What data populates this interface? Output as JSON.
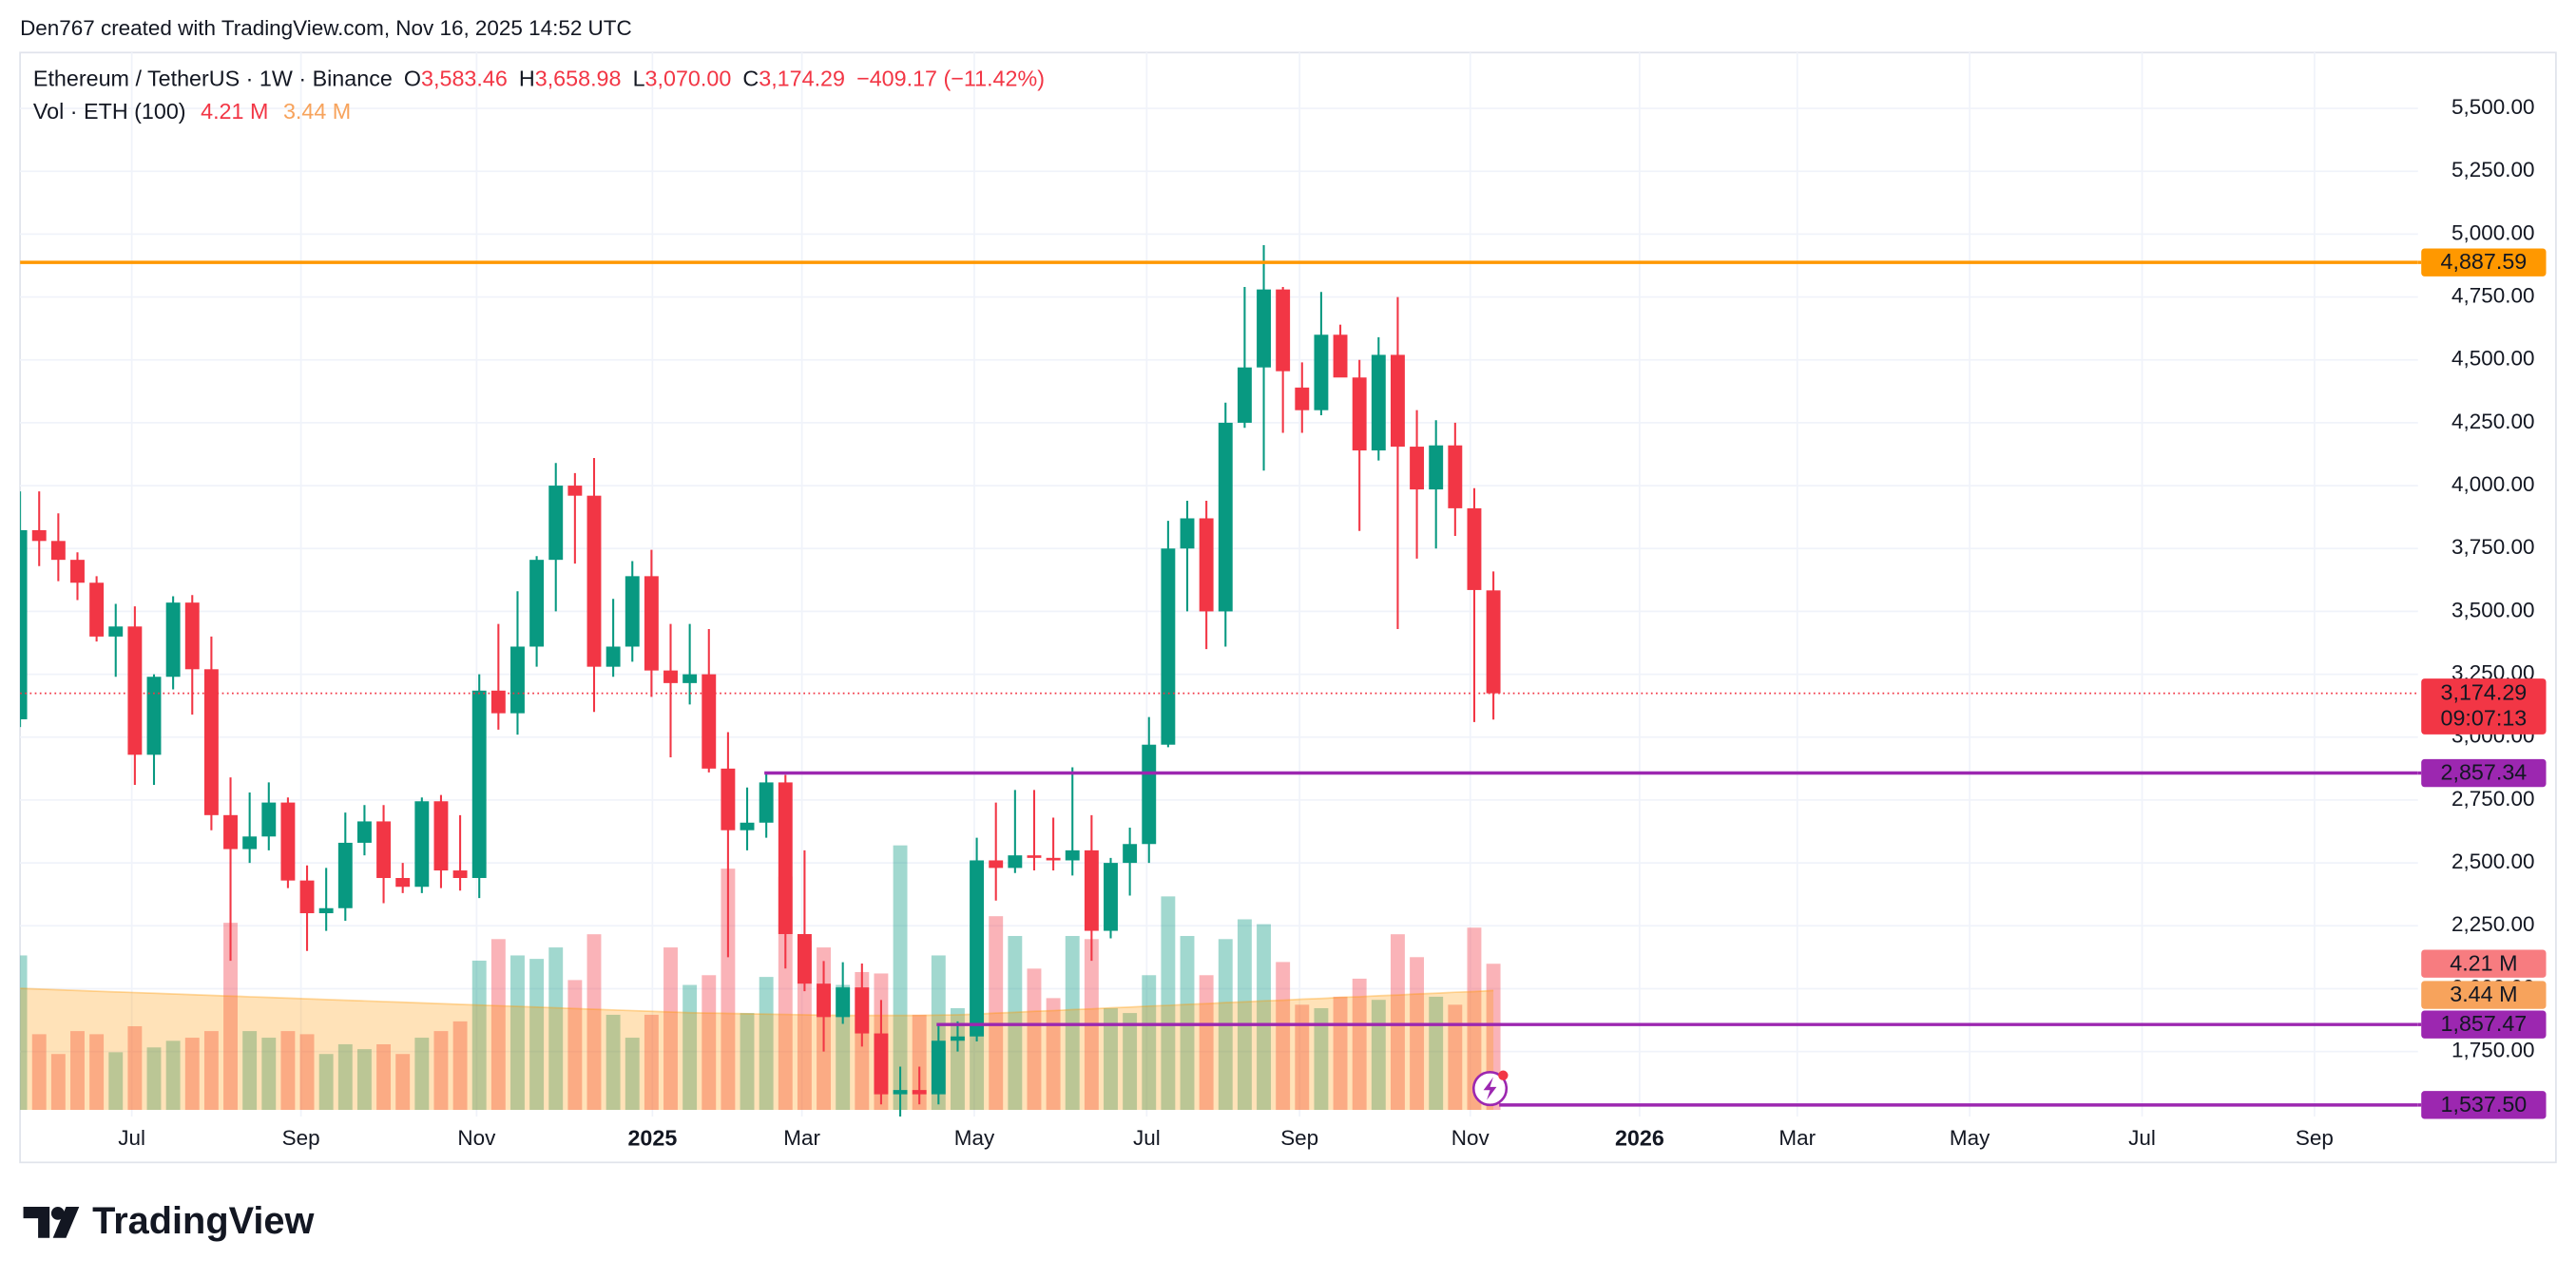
{
  "header": {
    "credit": "Den767 created with TradingView.com, Nov 16, 2025 14:52 UTC"
  },
  "footer": {
    "brand": "TradingView"
  },
  "chart_data": {
    "type": "candlestick",
    "legend": {
      "symbol": "Ethereum / TetherUS · 1W · Binance",
      "o": "O",
      "open": "3,583.46",
      "h": "H",
      "high": "3,658.98",
      "l": "L",
      "low": "3,070.00",
      "c": "C",
      "close": "3,174.29",
      "change": "−409.17 (−11.42%)",
      "volume_title": "Vol · ETH (100)",
      "volume": "4.21 M",
      "volume_ma": "3.44 M"
    },
    "up_color": "#089981",
    "down_color": "#f23645",
    "volume_ma_color": "#ff9800",
    "open": [
      3071,
      3823,
      3780,
      3705,
      3614,
      3400,
      3440,
      2930,
      3240,
      3535,
      3270,
      2690,
      2555,
      2605,
      2740,
      2430,
      2300,
      2320,
      2580,
      2665,
      2440,
      2405,
      2745,
      2470,
      2440,
      3185,
      3095,
      3360,
      3705,
      4000,
      3960,
      3280,
      3360,
      3640,
      3265,
      3215,
      3250,
      2875,
      2630,
      2660,
      2820,
      2217,
      2020,
      1887,
      2005,
      1822,
      1580,
      1597,
      1580,
      1793,
      1810,
      2510,
      2480,
      2530,
      2520,
      2510,
      2550,
      2230,
      2500,
      2575,
      2970,
      3750,
      3870,
      3500,
      4250,
      4470,
      4780,
      4390,
      4300,
      4600,
      4430,
      4140,
      4520,
      4155,
      3985,
      4160,
      3910,
      3583.46
    ],
    "high": [
      3977,
      3977,
      3890,
      3735,
      3640,
      3530,
      3520,
      3250,
      3560,
      3565,
      3400,
      2840,
      2780,
      2820,
      2760,
      2490,
      2480,
      2700,
      2730,
      2730,
      2500,
      2760,
      2770,
      2690,
      3250,
      3450,
      3580,
      3720,
      4090,
      4050,
      4110,
      3550,
      3700,
      3745,
      3450,
      3450,
      3430,
      3020,
      2800,
      2857.34,
      2850,
      2550,
      2110,
      2105,
      2100,
      1955,
      1690,
      1690,
      1860,
      1870,
      2600,
      2740,
      2790,
      2790,
      2680,
      2880,
      2690,
      2520,
      2640,
      3080,
      3860,
      3940,
      3940,
      4330,
      4790,
      4956,
      4790,
      4490,
      4770,
      4640,
      4500,
      4590,
      4750,
      4300,
      4260,
      4250,
      3990,
      3658.98
    ],
    "low": [
      3040,
      3680,
      3620,
      3545,
      3380,
      3240,
      2810,
      2810,
      3190,
      3090,
      2630,
      2111,
      2500,
      2550,
      2400,
      2150,
      2230,
      2270,
      2530,
      2340,
      2380,
      2380,
      2400,
      2390,
      2360,
      3030,
      3010,
      3280,
      3500,
      3690,
      3100,
      3240,
      3300,
      3160,
      2920,
      3130,
      2860,
      2125,
      2550,
      2600,
      2080,
      1990,
      1750,
      1860,
      1770,
      1540,
      1385,
      1540,
      1540,
      1750,
      1790,
      2350,
      2460,
      2470,
      2470,
      2450,
      2111,
      2200,
      2370,
      2500,
      2960,
      3500,
      3350,
      3360,
      4230,
      4060,
      4210,
      4210,
      4280,
      4440,
      3820,
      4100,
      3430,
      3710,
      3750,
      3800,
      3060,
      3070.0
    ],
    "close": [
      3823,
      3780,
      3705,
      3614,
      3400,
      3440,
      2930,
      3240,
      3535,
      3270,
      2690,
      2555,
      2605,
      2740,
      2430,
      2300,
      2320,
      2580,
      2665,
      2440,
      2405,
      2745,
      2470,
      2440,
      3185,
      3095,
      3360,
      3705,
      4000,
      3960,
      3280,
      3360,
      3640,
      3265,
      3215,
      3250,
      2875,
      2630,
      2660,
      2820,
      2217,
      2020,
      1887,
      2005,
      1822,
      1580,
      1597,
      1580,
      1793,
      1810,
      2510,
      2480,
      2530,
      2520,
      2510,
      2550,
      2230,
      2500,
      2575,
      2970,
      3750,
      3870,
      3500,
      4250,
      4470,
      4780,
      4455,
      4300,
      4600,
      4430,
      4140,
      4520,
      4155,
      3985,
      4160,
      3910,
      3585,
      3174.29
    ],
    "volume": [
      4.45,
      2.18,
      1.61,
      2.27,
      2.18,
      1.66,
      2.41,
      1.8,
      1.99,
      2.08,
      2.27,
      5.39,
      2.27,
      2.08,
      2.27,
      2.18,
      1.61,
      1.89,
      1.75,
      1.89,
      1.61,
      2.08,
      2.27,
      2.55,
      4.3,
      4.92,
      4.45,
      4.35,
      4.68,
      3.74,
      5.06,
      2.74,
      2.08,
      2.74,
      4.68,
      3.6,
      3.88,
      6.95,
      2.79,
      3.83,
      6.72,
      4.87,
      4.68,
      3.6,
      3.97,
      3.93,
      7.62,
      2.74,
      4.45,
      2.93,
      7.14,
      5.58,
      5.01,
      4.07,
      3.22,
      5.01,
      4.92,
      2.93,
      2.79,
      3.88,
      6.15,
      5.01,
      3.88,
      4.92,
      5.49,
      5.35,
      4.26,
      3.03,
      2.93,
      3.26,
      3.78,
      3.17,
      5.06,
      4.4,
      3.26,
      3.03,
      5.25,
      4.21
    ],
    "volume_ma": [
      3.5,
      3.48,
      3.46,
      3.44,
      3.42,
      3.4,
      3.38,
      3.36,
      3.34,
      3.32,
      3.3,
      3.28,
      3.26,
      3.24,
      3.22,
      3.2,
      3.18,
      3.16,
      3.14,
      3.12,
      3.1,
      3.08,
      3.06,
      3.04,
      3.02,
      3.0,
      2.98,
      2.96,
      2.94,
      2.92,
      2.9,
      2.88,
      2.86,
      2.84,
      2.82,
      2.8,
      2.79,
      2.78,
      2.77,
      2.76,
      2.75,
      2.74,
      2.73,
      2.72,
      2.72,
      2.72,
      2.72,
      2.72,
      2.73,
      2.74,
      2.76,
      2.79,
      2.81,
      2.84,
      2.86,
      2.89,
      2.91,
      2.94,
      2.96,
      2.99,
      3.01,
      3.04,
      3.06,
      3.09,
      3.11,
      3.14,
      3.16,
      3.19,
      3.21,
      3.24,
      3.26,
      3.29,
      3.31,
      3.34,
      3.36,
      3.39,
      3.41,
      3.44
    ],
    "xlim": [
      0,
      125.32
    ],
    "xticks": [
      {
        "value": 5.84,
        "label": "Jul"
      },
      {
        "value": 14.68,
        "label": "Sep"
      },
      {
        "value": 23.86,
        "label": "Nov"
      },
      {
        "value": 33.05,
        "label": "2025"
      },
      {
        "value": 40.86,
        "label": "Mar"
      },
      {
        "value": 49.87,
        "label": "May"
      },
      {
        "value": 58.88,
        "label": "Jul"
      },
      {
        "value": 66.87,
        "label": "Sep"
      },
      {
        "value": 75.79,
        "label": "Nov"
      },
      {
        "value": 84.64,
        "label": "2026"
      },
      {
        "value": 92.88,
        "label": "Mar"
      },
      {
        "value": 101.89,
        "label": "May"
      },
      {
        "value": 110.9,
        "label": "Jul"
      },
      {
        "value": 119.91,
        "label": "Sep"
      }
    ],
    "ylim": [
      1518,
      5722
    ],
    "yticks": [
      {
        "value": 1750,
        "label": "1,750.00"
      },
      {
        "value": 2000,
        "label": "2,000.00"
      },
      {
        "value": 2250,
        "label": "2,250.00"
      },
      {
        "value": 2500,
        "label": "2,500.00"
      },
      {
        "value": 2750,
        "label": "2,750.00"
      },
      {
        "value": 3000,
        "label": "3,000.00"
      },
      {
        "value": 3250,
        "label": "3,250.00"
      },
      {
        "value": 3500,
        "label": "3,500.00"
      },
      {
        "value": 3750,
        "label": "3,750.00"
      },
      {
        "value": 4000,
        "label": "4,000.00"
      },
      {
        "value": 4250,
        "label": "4,250.00"
      },
      {
        "value": 4500,
        "label": "4,500.00"
      },
      {
        "value": 4750,
        "label": "4,750.00"
      },
      {
        "value": 5000,
        "label": "5,000.00"
      },
      {
        "value": 5250,
        "label": "5,250.00"
      },
      {
        "value": 5500,
        "label": "5,500.00"
      }
    ],
    "volume_ylim": [
      0,
      30.46
    ],
    "grid": true,
    "lines": [
      {
        "value": 4887.59,
        "label": "4,887.59",
        "color": "#ff9800"
      },
      {
        "value": 2857.34,
        "label": "2,857.34",
        "color": "#9c27b0",
        "x_start": 38.9
      },
      {
        "value": 1857.47,
        "label": "1,857.47",
        "color": "#9c27b0",
        "x_start": 47.9
      },
      {
        "value": 1537.5,
        "label": "1,537.50",
        "color": "#9c27b0",
        "x_start": 77.3
      }
    ],
    "last_price": {
      "value": 3174.29,
      "label": "3,174.29",
      "countdown": "09:07:13",
      "color": "#f23645"
    }
  }
}
